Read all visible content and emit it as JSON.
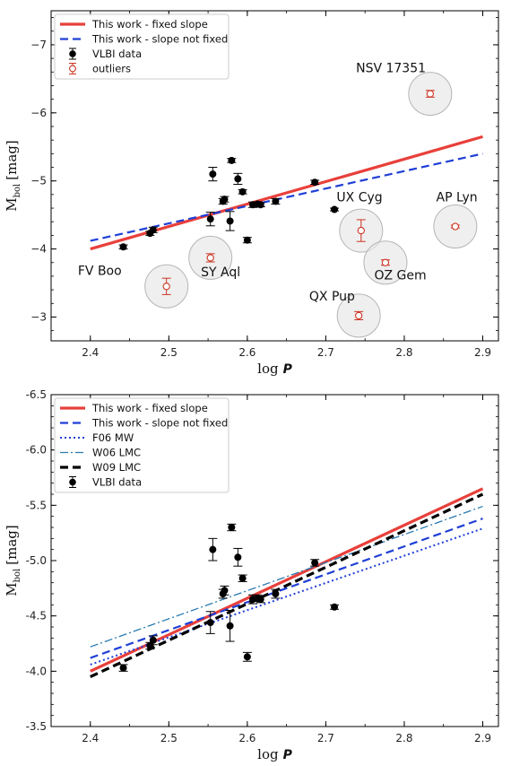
{
  "chart_data": [
    {
      "type": "scatter",
      "xlabel_main": "log",
      "xlabel_var": "P",
      "ylabel_main": "M",
      "ylabel_sub": "bol",
      "ylabel_unit": "[mag]",
      "xlim": [
        2.35,
        2.92
      ],
      "ylim": [
        -7.5,
        -2.65
      ],
      "y_inverted": true,
      "xticks": [
        "2.4",
        "2.5",
        "2.6",
        "2.7",
        "2.8",
        "2.9"
      ],
      "xtick_values": [
        2.4,
        2.5,
        2.6,
        2.7,
        2.8,
        2.9
      ],
      "yticks": [
        "−7",
        "−6",
        "−5",
        "−4",
        "−3"
      ],
      "ytick_values": [
        -7,
        -6,
        -5,
        -4,
        -3
      ],
      "grid": false,
      "legend_position": "top-left",
      "lines": [
        {
          "name": "This work - fixed slope",
          "color": "#e8403b",
          "style": "solid",
          "x": [
            2.4,
            2.9
          ],
          "y": [
            -4.0,
            -5.65
          ]
        },
        {
          "name": "This work - slope not fixed",
          "color": "#1f3fd6",
          "style": "dashed",
          "x": [
            2.4,
            2.9
          ],
          "y": [
            -4.12,
            -5.4
          ]
        }
      ],
      "series": [
        {
          "name": "VLBI data",
          "color": "#000000",
          "marker": "filled-circle",
          "x": [
            2.442,
            2.476,
            2.48,
            2.553,
            2.556,
            2.569,
            2.571,
            2.578,
            2.58,
            2.588,
            2.594,
            2.6,
            2.607,
            2.613,
            2.617,
            2.636,
            2.686,
            2.711
          ],
          "y": [
            -4.03,
            -4.23,
            -4.28,
            -4.44,
            -5.1,
            -4.7,
            -4.73,
            -4.41,
            -5.3,
            -5.03,
            -4.84,
            -4.13,
            -4.65,
            -4.66,
            -4.65,
            -4.7,
            -4.98,
            -4.58
          ],
          "yerr": [
            0.03,
            0.03,
            0.04,
            0.1,
            0.1,
            0.04,
            0.04,
            0.14,
            0.03,
            0.08,
            0.03,
            0.04,
            0.04,
            0.03,
            0.03,
            0.04,
            0.03,
            0.02
          ]
        },
        {
          "name": "outliers",
          "color": "#cc3322",
          "marker": "open-circle",
          "x": [
            2.497,
            2.553,
            2.745,
            2.742,
            2.776,
            2.833,
            2.865
          ],
          "y": [
            -3.45,
            -3.87,
            -4.27,
            -3.02,
            -3.8,
            -6.28,
            -4.33
          ],
          "yerr": [
            0.12,
            0.06,
            0.16,
            0.06,
            0.04,
            0.05,
            0.02
          ]
        }
      ],
      "annotations": [
        {
          "text": "NSV 17351",
          "x": 2.783,
          "y": -6.6
        },
        {
          "text": "UX Cyg",
          "x": 2.743,
          "y": -4.7
        },
        {
          "text": "AP Lyn",
          "x": 2.867,
          "y": -4.7
        },
        {
          "text": "FV Boo",
          "x": 2.412,
          "y": -3.62
        },
        {
          "text": "SY Aql",
          "x": 2.566,
          "y": -3.6
        },
        {
          "text": "OZ Gem",
          "x": 2.795,
          "y": -3.55
        },
        {
          "text": "QX Pup",
          "x": 2.708,
          "y": -3.24
        }
      ]
    },
    {
      "type": "scatter",
      "xlabel_main": "log",
      "xlabel_var": "P",
      "ylabel_main": "M",
      "ylabel_sub": "bol",
      "ylabel_unit": "[mag]",
      "xlim": [
        2.35,
        2.92
      ],
      "ylim": [
        -6.5,
        -3.5
      ],
      "y_inverted": true,
      "xticks": [
        "2.4",
        "2.5",
        "2.6",
        "2.7",
        "2.8",
        "2.9"
      ],
      "xtick_values": [
        2.4,
        2.5,
        2.6,
        2.7,
        2.8,
        2.9
      ],
      "yticks": [
        "-6.5",
        "-6.0",
        "-5.5",
        "-5.0",
        "-4.5",
        "-4.0",
        "-3.5"
      ],
      "ytick_values": [
        -6.5,
        -6.0,
        -5.5,
        -5.0,
        -4.5,
        -4.0,
        -3.5
      ],
      "grid": false,
      "legend_position": "top-left",
      "lines": [
        {
          "name": "This work - fixed slope",
          "color": "#e8403b",
          "style": "solid",
          "x": [
            2.4,
            2.9
          ],
          "y": [
            -4.0,
            -5.65
          ]
        },
        {
          "name": "This work - slope not fixed",
          "color": "#1f3fd6",
          "style": "dashed",
          "x": [
            2.4,
            2.9
          ],
          "y": [
            -4.12,
            -5.38
          ]
        },
        {
          "name": "F06 MW",
          "color": "#1f3fd6",
          "style": "dotted",
          "x": [
            2.4,
            2.9
          ],
          "y": [
            -4.06,
            -5.29
          ]
        },
        {
          "name": "W06 LMC",
          "color": "#2a7ab0",
          "style": "dashdot",
          "x": [
            2.4,
            2.9
          ],
          "y": [
            -4.22,
            -5.49
          ]
        },
        {
          "name": "W09 LMC",
          "color": "#000000",
          "style": "bold-dashed",
          "x": [
            2.4,
            2.9
          ],
          "y": [
            -3.95,
            -5.6
          ]
        }
      ],
      "series": [
        {
          "name": "VLBI data",
          "color": "#000000",
          "marker": "filled-circle",
          "x": [
            2.442,
            2.476,
            2.48,
            2.553,
            2.556,
            2.569,
            2.571,
            2.578,
            2.58,
            2.588,
            2.594,
            2.6,
            2.607,
            2.613,
            2.617,
            2.636,
            2.686,
            2.711
          ],
          "y": [
            -4.03,
            -4.23,
            -4.28,
            -4.44,
            -5.1,
            -4.7,
            -4.73,
            -4.41,
            -5.3,
            -5.03,
            -4.84,
            -4.13,
            -4.65,
            -4.66,
            -4.65,
            -4.7,
            -4.98,
            -4.58
          ],
          "yerr": [
            0.03,
            0.03,
            0.04,
            0.1,
            0.1,
            0.04,
            0.04,
            0.14,
            0.03,
            0.08,
            0.03,
            0.04,
            0.04,
            0.03,
            0.03,
            0.04,
            0.03,
            0.02
          ]
        }
      ]
    }
  ]
}
